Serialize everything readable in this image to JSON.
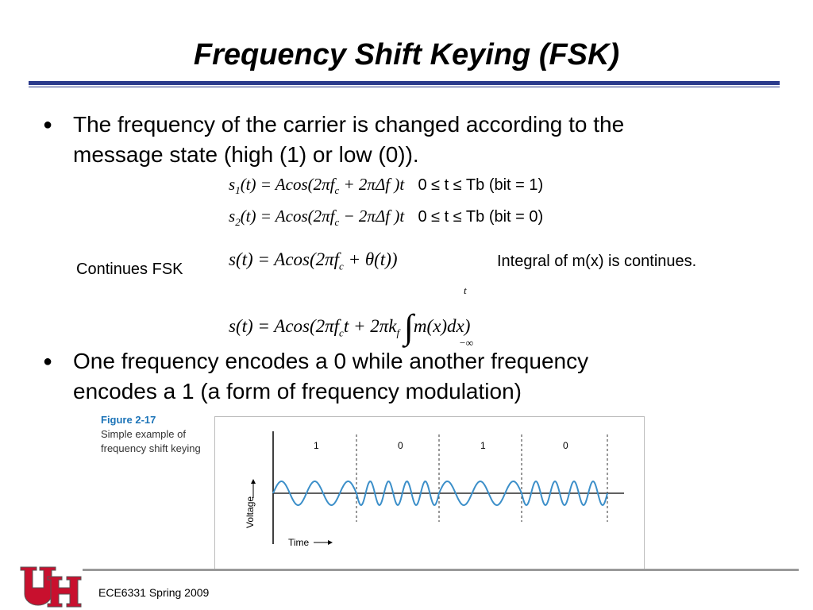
{
  "title": "Frequency Shift Keying (FSK)",
  "bullets": [
    "The frequency of the carrier is changed according to the\nmessage state (high (1) or low (0)).",
    "One frequency encodes a 0 while another frequency\nencodes a 1 (a form of frequency modulation)"
  ],
  "equations": {
    "s1_lhs": "s",
    "s1_sub": "1",
    "s1_rhs": "(t) = Acos(2πf",
    "s1_rhs_sub": "c",
    "s1_rhs_end": " + 2πΔf )t",
    "s1_cond": "0 ≤ t ≤ Tb (bit = 1)",
    "s2_lhs": "s",
    "s2_sub": "2",
    "s2_rhs": "(t) = Acos(2πf",
    "s2_rhs_sub": "c",
    "s2_rhs_end": " − 2πΔf )t",
    "s2_cond": "0 ≤ t ≤ Tb (bit = 0)",
    "cont1": "s(t) = Acos(2πf",
    "cont1_sub": "c",
    "cont1_end": " + θ(t))",
    "cont2": "s(t) = Acos(2πf",
    "cont2_sub": "c",
    "cont2_mid": "t + 2πk",
    "cont2_sub2": "f",
    "cont2_end": "m(x)dx)",
    "int_upper": "t",
    "int_lower": "−∞"
  },
  "labels": {
    "continues_fsk": "Continues FSK",
    "integral_note": "Integral of m(x) is continues."
  },
  "figure": {
    "title": "Figure 2-17",
    "caption_line1": "Simple example of",
    "caption_line2": "frequency shift keying",
    "bits": [
      "1",
      "0",
      "1",
      "0"
    ],
    "y_axis_label": "Voltage",
    "x_axis_label": "Time",
    "carrier_color": "#3c8fc9"
  },
  "footer": {
    "course": "ECE6331 Spring 2009"
  },
  "colors": {
    "title_rule": "#2b3b8c",
    "logo_red": "#c8102e"
  }
}
